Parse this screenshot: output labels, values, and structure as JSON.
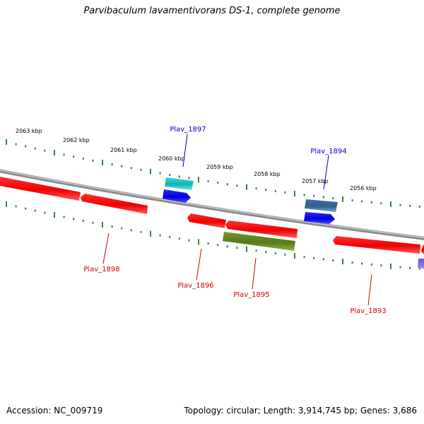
{
  "title": "Parvibaculum lavamentivorans DS-1, complete genome",
  "footer": {
    "accession": "Accession: NC_009719",
    "summary": "Topology: circular; Length: 3,914,745 bp; Genes: 3,686"
  },
  "ruler_labels": [
    "2063 kbp",
    "2062 kbp",
    "2061 kbp",
    "2060 kbp",
    "2059 kbp",
    "2058 kbp",
    "2057 kbp",
    "2056 kbp"
  ],
  "genes": [
    {
      "name": "Plav_1898",
      "color": "#cc0000",
      "strand": "reverse"
    },
    {
      "name": "Plav_1897",
      "color": "#0000cc",
      "strand": "forward"
    },
    {
      "name": "Plav_1896",
      "color": "#cc0000",
      "strand": "reverse"
    },
    {
      "name": "Plav_1895",
      "color": "#cc0000",
      "strand": "reverse"
    },
    {
      "name": "Plav_1894",
      "color": "#0000cc",
      "strand": "forward"
    },
    {
      "name": "Plav_1893",
      "color": "#cc0000",
      "strand": "reverse"
    }
  ],
  "colors": {
    "backbone": "#8a8a8a",
    "ruler_ticks": "#2e8b2e",
    "reverse_gene": "#ff1a1a",
    "forward_gene": "#0a0aff",
    "cds_cyan": "#22cccc",
    "cds_steelblue": "#4477aa",
    "cds_olive": "#6b8e23"
  }
}
